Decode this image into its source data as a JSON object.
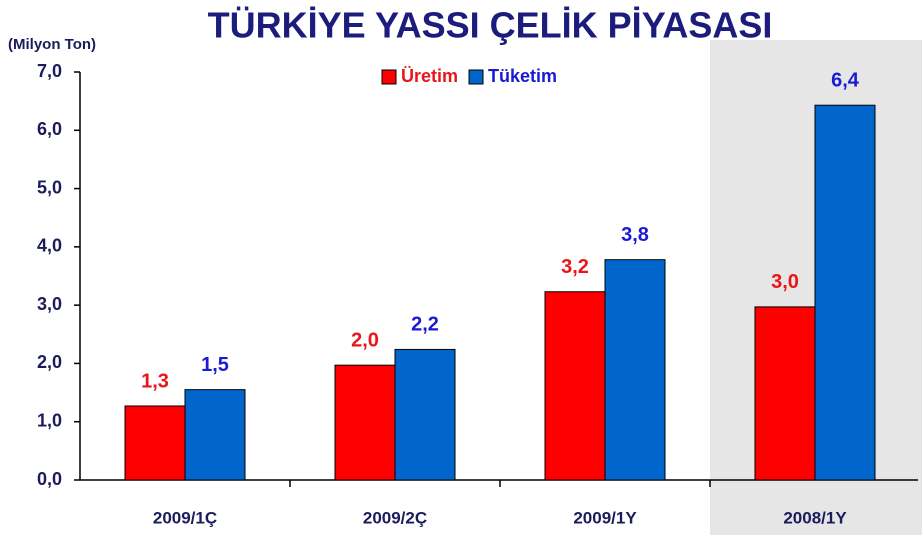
{
  "chart_data": {
    "type": "bar",
    "title": "TÜRKİYE YASSI ÇELİK PİYASASI",
    "y_label": "(Milyon Ton)",
    "categories": [
      "2009/1Ç",
      "2009/2Ç",
      "2009/1Y",
      "2008/1Y"
    ],
    "series": [
      {
        "name": "Üretim",
        "color": "#ff0000",
        "label_color": "#e8161b",
        "values": [
          1.27,
          1.97,
          3.23,
          2.97
        ],
        "value_labels": [
          "1,3",
          "2,0",
          "3,2",
          "3,0"
        ]
      },
      {
        "name": "Tüketim",
        "color": "#0066cc",
        "label_color": "#1a1ad4",
        "values": [
          1.55,
          2.24,
          3.78,
          6.43
        ],
        "value_labels": [
          "1,5",
          "2,2",
          "3,8",
          "6,4"
        ]
      }
    ],
    "ylim": [
      0,
      7
    ],
    "yticks": [
      {
        "value": 0,
        "label": "0,0"
      },
      {
        "value": 1,
        "label": "1,0"
      },
      {
        "value": 2,
        "label": "2,0"
      },
      {
        "value": 3,
        "label": "3,0"
      },
      {
        "value": 4,
        "label": "4,0"
      },
      {
        "value": 5,
        "label": "5,0"
      },
      {
        "value": 6,
        "label": "6,0"
      },
      {
        "value": 7,
        "label": "7,0"
      }
    ]
  }
}
